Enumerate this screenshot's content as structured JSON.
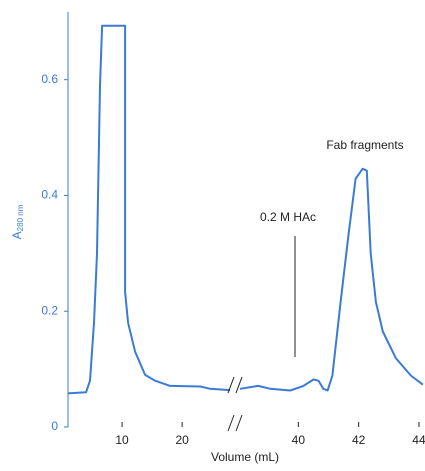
{
  "chart_data": {
    "type": "line",
    "x_label": "Volume (mL)",
    "y_label": "A",
    "y_label_sub": "280 nm",
    "annotations": [
      "Fab fragments",
      "0.2 M HAc"
    ],
    "xlim": [
      1,
      44.1
    ],
    "x_break": [
      28.8,
      37.9
    ],
    "xticks": [
      10,
      20,
      40,
      42,
      44
    ],
    "ylim": [
      0,
      0.71
    ],
    "yticks": [
      0,
      0.2,
      0.4,
      0.6
    ],
    "grid": false,
    "series": [
      {
        "color": "#3a7bd5",
        "x": [
          1,
          4,
          4.67,
          5.33,
          5.83,
          6.33,
          6.67,
          10.5,
          10.5,
          11,
          12.17,
          13.83,
          15.5,
          18,
          23,
          24.67,
          28.8,
          38.07,
          38.67,
          39.07,
          39.73,
          40.17,
          40.5,
          40.67,
          40.83,
          40.97,
          41.13,
          41.4,
          41.67,
          41.9,
          42.13,
          42.27,
          42.4,
          42.57,
          42.8,
          43.23,
          43.73,
          44.13
        ],
        "values": [
          0.058,
          0.06,
          0.08,
          0.18,
          0.3,
          0.59,
          0.693,
          0.693,
          0.233,
          0.18,
          0.13,
          0.09,
          0.08,
          0.071,
          0.07,
          0.066,
          0.063,
          0.066,
          0.071,
          0.066,
          0.063,
          0.071,
          0.082,
          0.08,
          0.066,
          0.063,
          0.089,
          0.216,
          0.335,
          0.429,
          0.446,
          0.443,
          0.3,
          0.216,
          0.165,
          0.119,
          0.089,
          0.073
        ]
      }
    ]
  }
}
